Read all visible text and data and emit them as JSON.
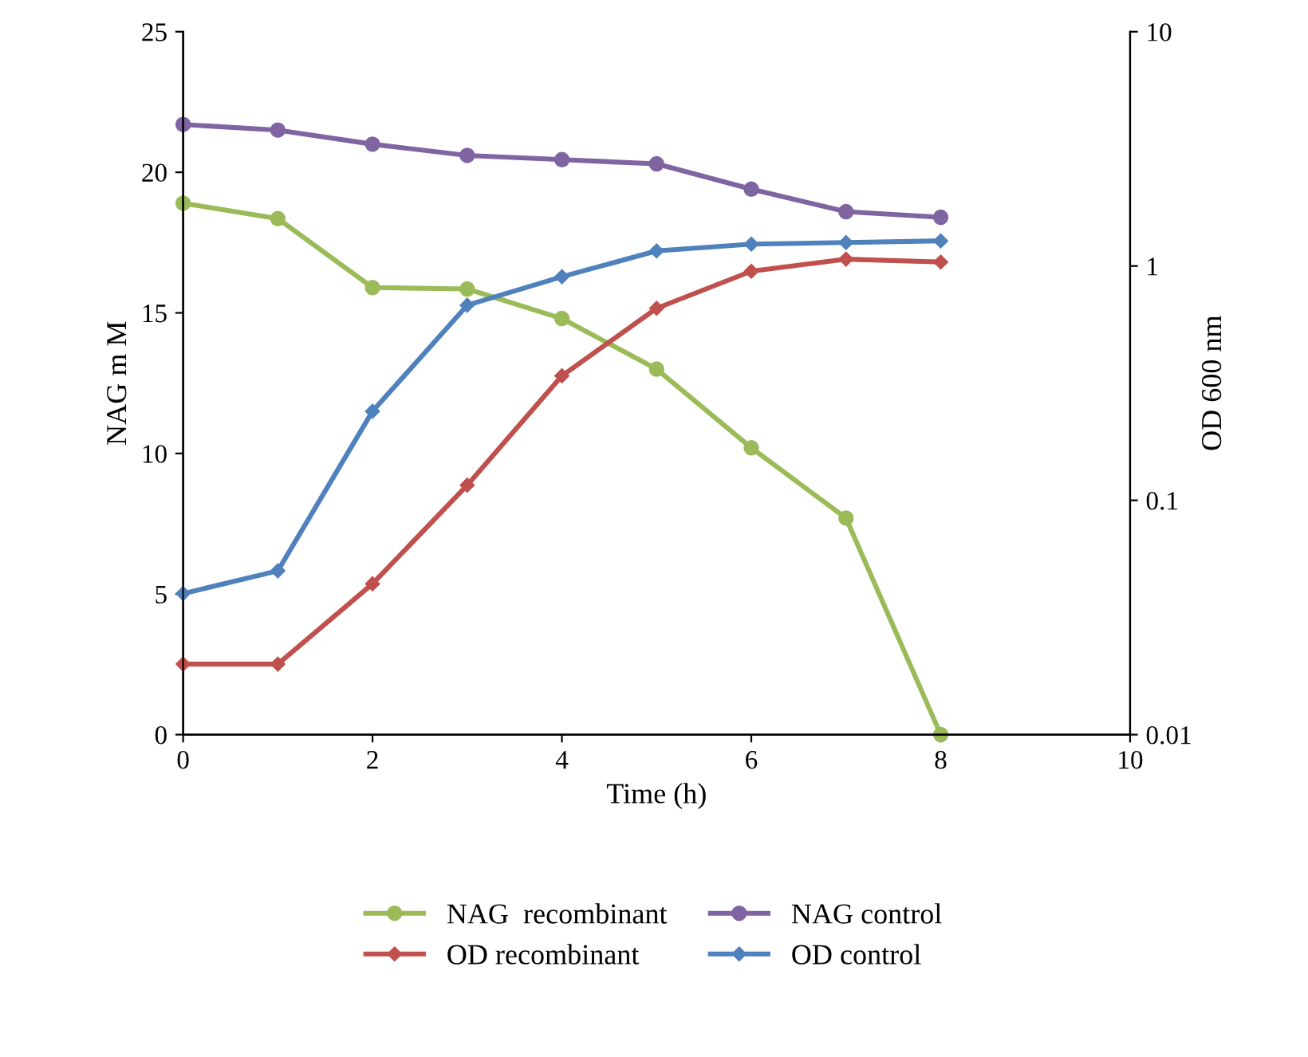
{
  "chart_data": {
    "type": "line",
    "xlabel": "Time (h)",
    "ylabel": "NAG m M",
    "y2label": "OD 600 nm",
    "x": [
      0,
      1,
      2,
      3,
      4,
      5,
      6,
      7,
      8
    ],
    "xlim": [
      0,
      10
    ],
    "xticks": [
      0,
      2,
      4,
      6,
      8,
      10
    ],
    "ylim": [
      0,
      25
    ],
    "yticks": [
      0,
      5,
      10,
      15,
      20,
      25
    ],
    "log": "y2",
    "y2lim": [
      0.01,
      10
    ],
    "y2ticks": [
      0.01,
      0.1,
      1,
      10
    ],
    "legend": "bottom",
    "grid": false,
    "line_style": "solid",
    "series": [
      {
        "name": "NAG  recombinant",
        "color": "#9bbb59",
        "marker": "circle",
        "values": [
          18.9,
          18.35,
          15.9,
          15.85,
          14.8,
          13.0,
          10.2,
          7.7,
          0
        ]
      },
      {
        "name": "NAG control",
        "color": "#8064a2",
        "marker": "circle",
        "values": [
          21.7,
          21.5,
          21.0,
          20.6,
          20.45,
          20.3,
          19.4,
          18.6,
          18.4
        ]
      },
      {
        "name": "OD recombinant",
        "color": "#c0504d",
        "marker": "diamond",
        "axis": "y2",
        "values": [
          0.02,
          0.02,
          0.044,
          0.116,
          0.34,
          0.66,
          0.95,
          1.07,
          1.04
        ]
      },
      {
        "name": "OD control",
        "color": "#4f81bd",
        "marker": "diamond",
        "axis": "y2",
        "values": [
          0.04,
          0.05,
          0.24,
          0.68,
          0.9,
          1.16,
          1.24,
          1.26,
          1.28
        ]
      }
    ]
  }
}
